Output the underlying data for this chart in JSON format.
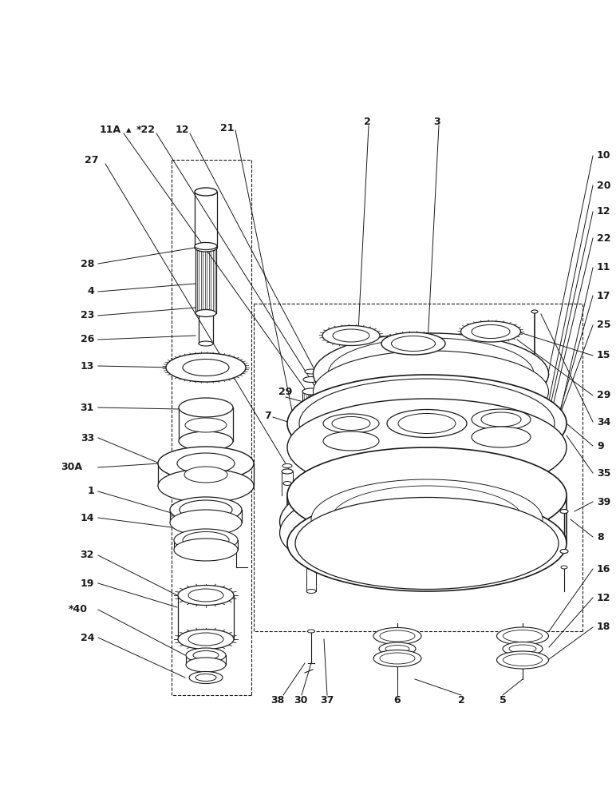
{
  "bg_color": "#ffffff",
  "line_color": "#1a1a1a",
  "figsize": [
    7.72,
    10.0
  ],
  "dpi": 100,
  "gray": "#888888",
  "darkgray": "#444444"
}
